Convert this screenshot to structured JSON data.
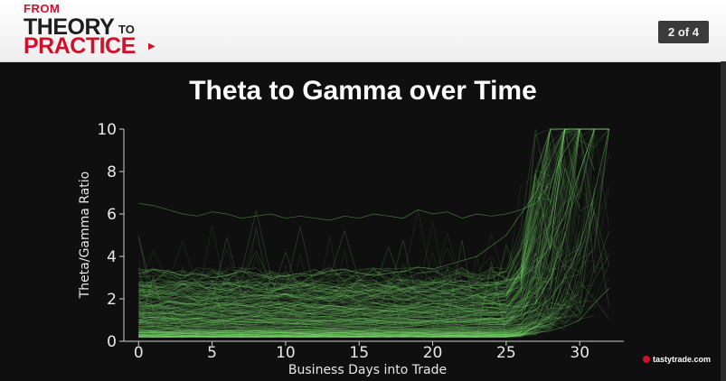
{
  "header": {
    "logo": {
      "line1": "FROM",
      "line2": "THEORY",
      "line2_small": "TO",
      "line3": "PRACTICE"
    },
    "page_indicator": "2 of 4"
  },
  "slide": {
    "title": "Theta to Gamma over Time"
  },
  "brand": {
    "text": "tastytrade",
    "suffix": ".com"
  },
  "colors": {
    "background": "#0f0f0f",
    "line": "#7ddc6e",
    "brand_red": "#d0112b"
  },
  "chart_data": {
    "type": "line",
    "title": "",
    "xlabel": "Business Days into Trade",
    "ylabel": "Theta/Gamma Ratio",
    "xlim": [
      -1,
      33
    ],
    "ylim": [
      0,
      10
    ],
    "xticks": [
      0,
      5,
      10,
      15,
      20,
      25,
      30
    ],
    "yticks": [
      0,
      2,
      4,
      6,
      8,
      10
    ],
    "grid": false,
    "legend": "none",
    "series_count": 400,
    "x": [
      0,
      1,
      2,
      3,
      4,
      5,
      6,
      7,
      8,
      9,
      10,
      11,
      12,
      13,
      14,
      15,
      16,
      17,
      18,
      19,
      20,
      21,
      22,
      23,
      24,
      25,
      26,
      27,
      28,
      29,
      30,
      31,
      32
    ],
    "series": [
      {
        "values": [
          1.9,
          1.7,
          1.9,
          1.8,
          1.7,
          1.8,
          1.8,
          1.7,
          1.6,
          1.7,
          1.8,
          1.7,
          1.6,
          1.7,
          1.6,
          1.5,
          1.5,
          1.4,
          1.5,
          1.6,
          1.8,
          1.7,
          1.6,
          1.7,
          1.8,
          1.7,
          1.6,
          1.8,
          3.0,
          5.0,
          8.0,
          10.0,
          10.0
        ]
      },
      {
        "values": [
          0.6,
          0.5,
          0.6,
          0.5,
          0.5,
          0.4,
          0.5,
          0.4,
          0.5,
          0.4,
          0.4,
          0.4,
          0.3,
          0.4,
          0.4,
          0.3,
          0.4,
          0.3,
          0.3,
          0.4,
          0.3,
          0.3,
          0.3,
          0.3,
          0.3,
          0.3,
          0.3,
          0.4,
          0.5,
          0.7,
          1.0,
          1.8,
          2.5
        ]
      },
      {
        "values": [
          6.5,
          6.4,
          6.2,
          6.0,
          5.9,
          6.1,
          6.0,
          5.8,
          5.9,
          6.0,
          5.8,
          5.9,
          5.8,
          5.7,
          5.9,
          5.8,
          6.0,
          5.9,
          5.8,
          6.2,
          6.0,
          6.1,
          5.8,
          6.0,
          5.9,
          6.0,
          6.2,
          6.5,
          7.5,
          9.0,
          10.0,
          10.0,
          10.0
        ]
      },
      {
        "values": [
          3.2,
          3.4,
          3.3,
          3.1,
          3.2,
          3.0,
          3.1,
          3.3,
          3.2,
          3.0,
          3.1,
          3.2,
          3.1,
          3.3,
          3.4,
          3.2,
          3.1,
          3.2,
          3.3,
          3.5,
          3.4,
          3.6,
          3.8,
          4.0,
          4.5,
          5.0,
          6.0,
          7.0,
          8.5,
          10.0,
          10.0,
          10.0,
          10.0
        ]
      },
      {
        "values": [
          2.6,
          2.6,
          2.5,
          2.7,
          2.6,
          2.5,
          2.4,
          2.6,
          2.5,
          2.4,
          2.5,
          2.6,
          2.7,
          2.6,
          2.5,
          2.6,
          2.7,
          2.6,
          2.5,
          2.6,
          2.8,
          2.7,
          2.6,
          2.5,
          2.7,
          2.9,
          3.0,
          3.5,
          4.5,
          6.0,
          8.0,
          10.0,
          10.0
        ]
      },
      {
        "values": [
          1.2,
          1.1,
          1.1,
          1.0,
          1.1,
          1.0,
          1.0,
          1.1,
          1.0,
          0.9,
          1.0,
          1.0,
          0.9,
          1.0,
          0.9,
          0.9,
          1.0,
          0.9,
          0.9,
          0.9,
          1.0,
          0.9,
          0.9,
          1.0,
          1.0,
          1.1,
          1.2,
          1.5,
          2.0,
          3.0,
          4.5,
          7.0,
          10.0
        ]
      }
    ]
  }
}
